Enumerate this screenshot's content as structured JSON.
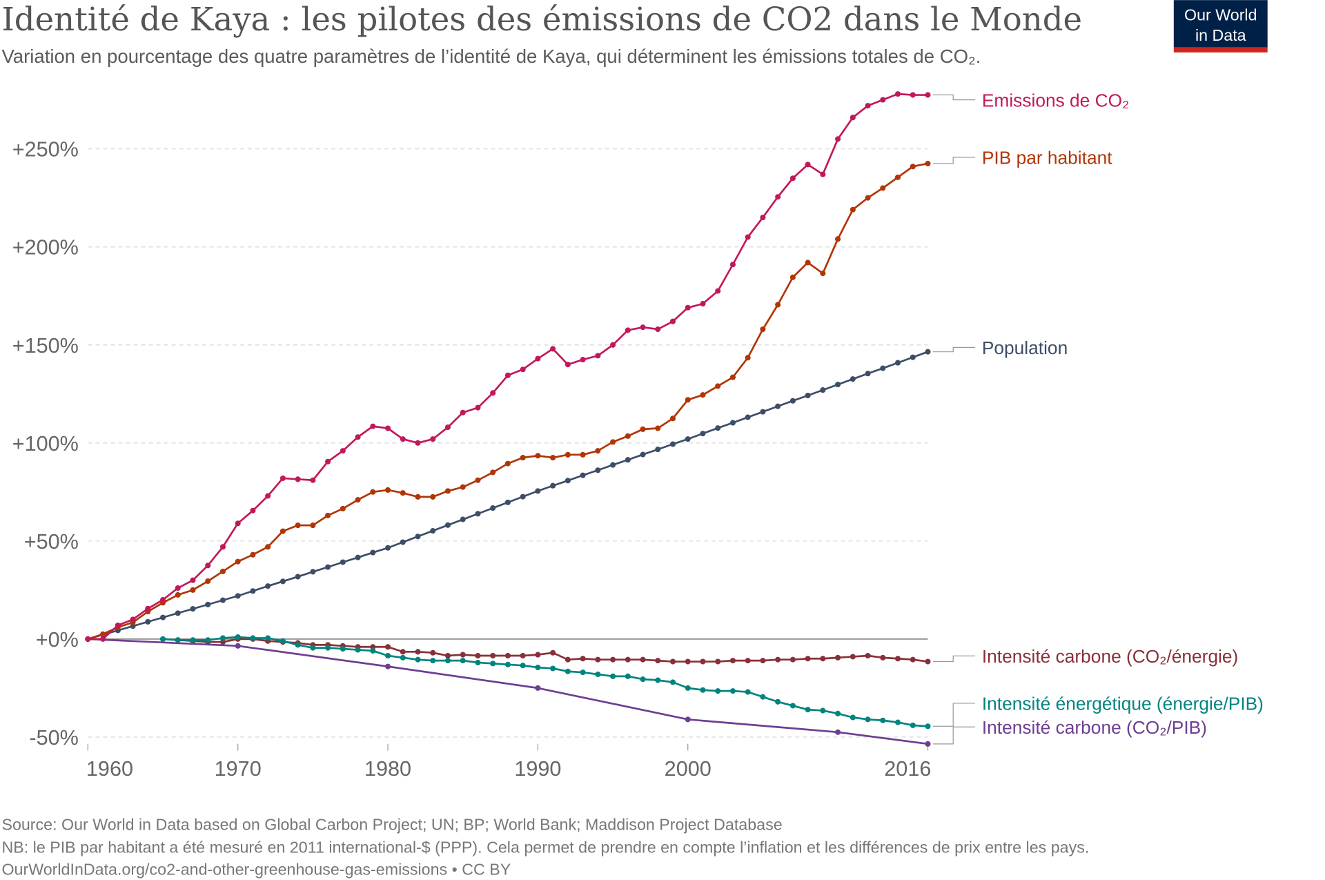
{
  "header": {
    "title": "Identité de Kaya : les pilotes des émissions de CO2 dans le Monde",
    "subtitle": "Variation en pourcentage des quatre paramètres de l’identité de Kaya, qui déterminent les émissions totales de CO₂.",
    "logo": {
      "line1": "Our World",
      "line2": "in Data",
      "bg": "#002147",
      "accent": "#ce261e"
    }
  },
  "footer": {
    "source": "Source: Our World in Data based on Global Carbon Project; UN; BP; World Bank; Maddison Project Database",
    "note": "NB: le PIB par habitant a été mesuré en 2011 international-$ (PPP). Cela permet de prendre en compte l’inflation et les différences de prix entre les pays.",
    "url": "OurWorldInData.org/co2-and-other-greenhouse-gas-emissions • CC BY"
  },
  "chart_data": {
    "type": "line",
    "title": "Identité de Kaya : les pilotes des émissions de CO2 dans le Monde",
    "xlim": [
      1960,
      2016
    ],
    "ylim": [
      -50,
      280
    ],
    "x_ticks": [
      1960,
      1970,
      1980,
      1990,
      2000,
      2016
    ],
    "x_tick_labels": [
      "1960",
      "1970",
      "1980",
      "1990",
      "2000",
      "2016"
    ],
    "y_ticks": [
      -50,
      0,
      50,
      100,
      150,
      200,
      250
    ],
    "y_tick_labels": [
      "-50%",
      "+0%",
      "+50%",
      "+100%",
      "+150%",
      "+200%",
      "+250%"
    ],
    "grid": "horizontal dashed",
    "legend": "right, inline labels",
    "series": [
      {
        "name": "Emissions de CO₂",
        "color": "#c2185b",
        "start": 1960,
        "values": [
          0,
          0,
          7,
          10,
          15.5,
          20,
          26,
          30,
          37.5,
          47,
          59,
          65.5,
          73,
          82,
          81.5,
          81,
          90.5,
          96,
          103,
          108.5,
          107.5,
          102,
          100,
          102,
          108,
          115.5,
          118,
          125.5,
          134.5,
          137.5,
          143,
          148,
          140,
          142.5,
          144.5,
          150,
          157.5,
          159,
          158,
          162,
          169,
          171,
          177.5,
          191,
          205,
          215,
          225.5,
          235,
          242,
          237,
          255,
          266,
          272,
          275,
          278,
          277.5,
          277.5
        ]
      },
      {
        "name": "PIB par habitant",
        "color": "#b13507",
        "start": 1960,
        "values": [
          0,
          2.5,
          6,
          8.5,
          14,
          18.5,
          22.5,
          25,
          29.5,
          34.5,
          39.5,
          43,
          47,
          55,
          58,
          58,
          63,
          66.5,
          71,
          75,
          76,
          74.5,
          72.5,
          72.5,
          75.5,
          77.5,
          81,
          85,
          89.5,
          92.5,
          93.5,
          92.5,
          94,
          94,
          96,
          100.5,
          103.5,
          107,
          107.5,
          112.5,
          122,
          124.5,
          129,
          133.5,
          143.5,
          158,
          170.5,
          184.5,
          192,
          186.5,
          204,
          219,
          225,
          230,
          235.5,
          241,
          242.5
        ]
      },
      {
        "name": "Population",
        "color": "#3c4e66",
        "start": 1960,
        "values": [
          0,
          2.2,
          4.4,
          6.6,
          8.8,
          11,
          13.2,
          15.4,
          17.6,
          19.8,
          22,
          24.5,
          27,
          29.4,
          31.8,
          34.3,
          36.7,
          39.2,
          41.6,
          44.1,
          46.5,
          49.4,
          52.3,
          55.2,
          58.1,
          61,
          63.9,
          66.8,
          69.7,
          72.6,
          75.5,
          78.2,
          80.8,
          83.5,
          86.1,
          88.8,
          91.4,
          94.1,
          96.7,
          99.4,
          102,
          104.8,
          107.6,
          110.3,
          113.1,
          115.9,
          118.7,
          121.5,
          124.2,
          127,
          129.8,
          132.6,
          135.4,
          138.1,
          140.9,
          143.7,
          146.5
        ]
      },
      {
        "name": "Intensité carbone (CO₂/énergie)",
        "color": "#883039",
        "start": 1965,
        "values": [
          0,
          -0.5,
          -1,
          -1.5,
          -1.5,
          0,
          0,
          -1,
          -1.5,
          -2,
          -3,
          -3,
          -3.5,
          -4,
          -4,
          -4,
          -6.5,
          -6.5,
          -7,
          -8.5,
          -8,
          -8.5,
          -8.5,
          -8.5,
          -8.5,
          -8,
          -7,
          -10.5,
          -10,
          -10.5,
          -10.5,
          -10.5,
          -10.5,
          -11,
          -11.5,
          -11.5,
          -11.5,
          -11.5,
          -11,
          -11,
          -11,
          -10.5,
          -10.5,
          -10,
          -10,
          -9.5,
          -9,
          -8.5,
          -9.5,
          -10,
          -10.5,
          -11.5
        ]
      },
      {
        "name": "Intensité énergétique (énergie/PIB)",
        "color": "#00847e",
        "start": 1965,
        "values": [
          0,
          -0.5,
          -0.5,
          -0.5,
          0.5,
          1,
          0.5,
          0.5,
          -1,
          -3,
          -4.5,
          -4.5,
          -5,
          -5.5,
          -6,
          -8.5,
          -9.5,
          -10.5,
          -11,
          -11,
          -11,
          -12,
          -12.5,
          -13,
          -13.5,
          -14.5,
          -15,
          -16.5,
          -17,
          -18,
          -19,
          -19,
          -20.5,
          -21,
          -22,
          -25,
          -26,
          -26.5,
          -26.5,
          -27,
          -29.5,
          -32,
          -34,
          -36,
          -36.5,
          -38,
          -40,
          -41,
          -41.5,
          -42.5,
          -44,
          -44.5
        ]
      },
      {
        "name": "Intensité carbone (CO₂/PIB)",
        "color": "#6d3e91",
        "x": [
          1960,
          1970,
          1980,
          1990,
          2000,
          2010,
          2016
        ],
        "values": [
          0,
          -3.5,
          -14,
          -25,
          -41,
          -47.5,
          -53.5
        ]
      }
    ]
  }
}
